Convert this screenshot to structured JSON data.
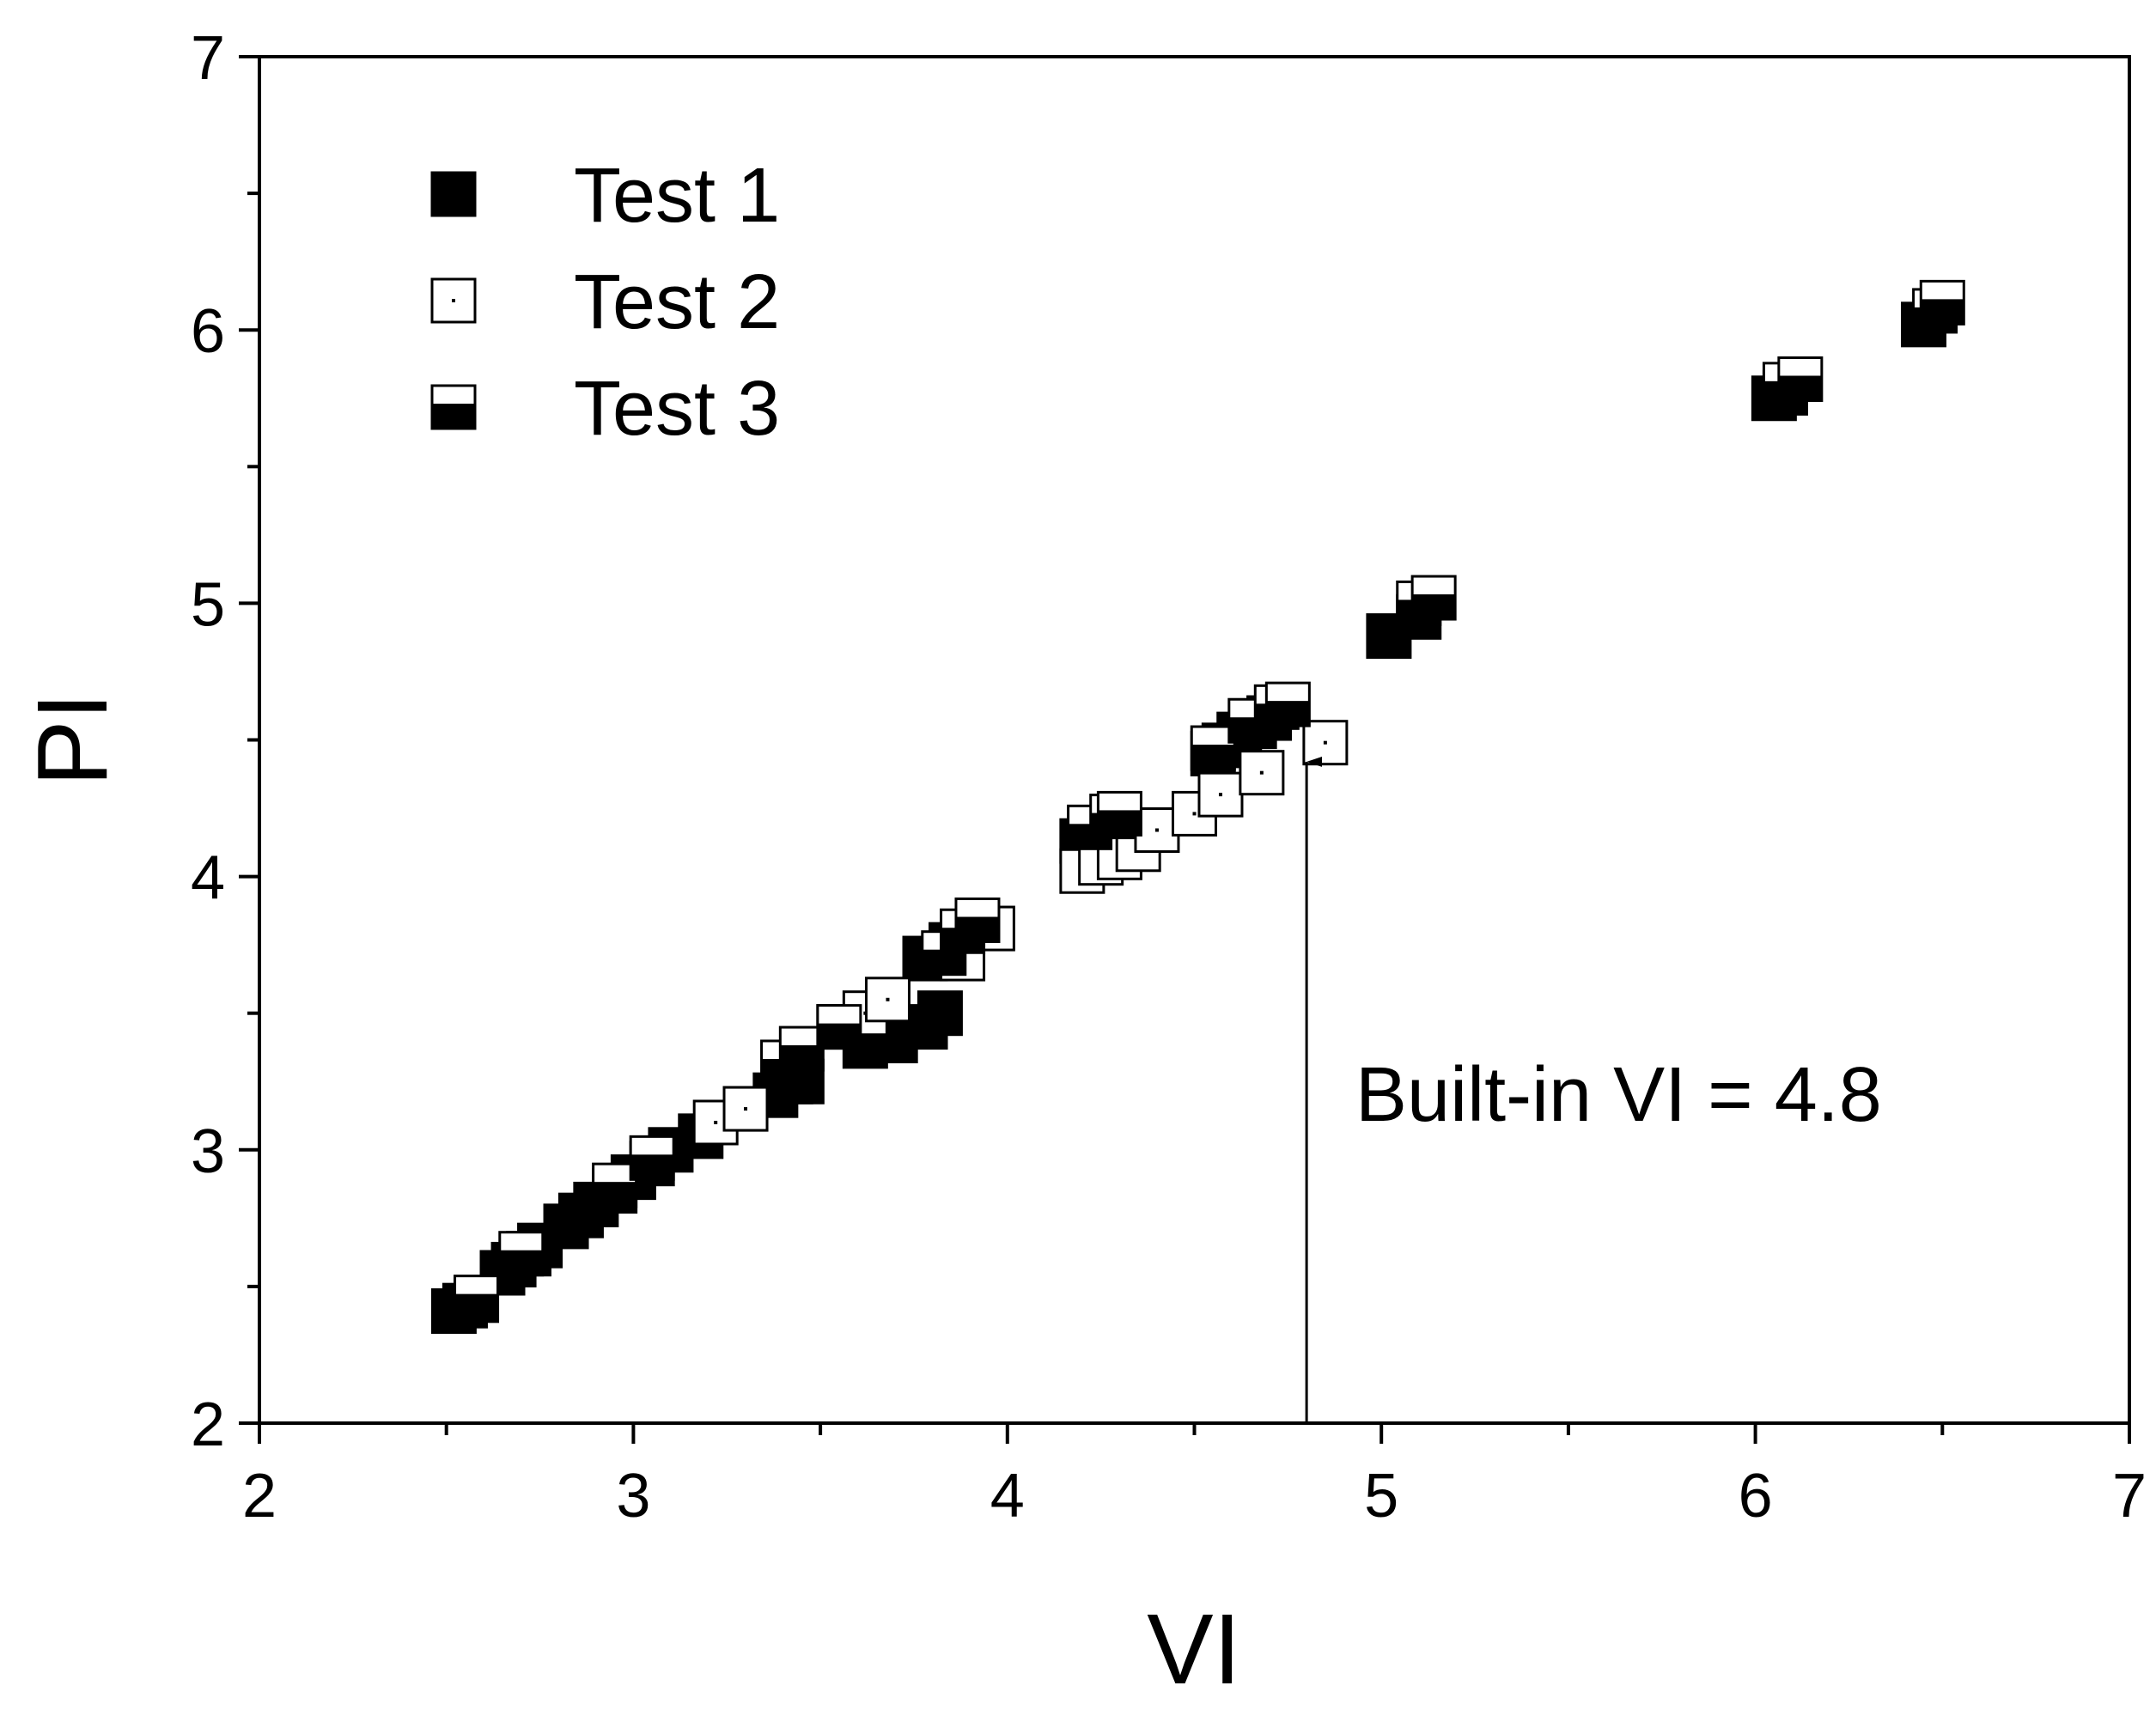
{
  "chart_data": {
    "type": "scatter",
    "xlabel": "VI",
    "ylabel": "PI",
    "xlim": [
      2,
      7
    ],
    "ylim": [
      2,
      7
    ],
    "xticks": [
      "2",
      "3",
      "4",
      "5",
      "6",
      "7"
    ],
    "yticks": [
      "2",
      "3",
      "4",
      "5",
      "6",
      "7"
    ],
    "grid": false,
    "legend_position": "top-left",
    "annotation": {
      "text": "Built-in VI = 4.8",
      "x": 4.8,
      "y_from": 2.0,
      "y_to": 4.42
    },
    "series": [
      {
        "name": "Test 1",
        "marker": "filled-square",
        "points": [
          [
            2.52,
            2.41
          ],
          [
            2.55,
            2.43
          ],
          [
            2.58,
            2.45
          ],
          [
            2.65,
            2.55
          ],
          [
            2.68,
            2.58
          ],
          [
            2.72,
            2.62
          ],
          [
            2.75,
            2.65
          ],
          [
            2.82,
            2.72
          ],
          [
            2.86,
            2.76
          ],
          [
            2.9,
            2.8
          ],
          [
            2.95,
            2.85
          ],
          [
            3.0,
            2.9
          ],
          [
            3.05,
            2.95
          ],
          [
            3.1,
            3.0
          ],
          [
            3.18,
            3.05
          ],
          [
            3.3,
            3.15
          ],
          [
            3.38,
            3.2
          ],
          [
            3.42,
            3.25
          ],
          [
            3.45,
            3.25
          ],
          [
            3.62,
            3.38
          ],
          [
            3.7,
            3.4
          ],
          [
            3.78,
            3.45
          ],
          [
            3.82,
            3.5
          ],
          [
            3.78,
            3.7
          ],
          [
            3.85,
            3.75
          ],
          [
            4.2,
            4.13
          ],
          [
            4.22,
            4.15
          ],
          [
            4.25,
            4.17
          ],
          [
            4.55,
            4.45
          ],
          [
            4.58,
            4.48
          ],
          [
            4.62,
            4.52
          ],
          [
            4.66,
            4.55
          ],
          [
            4.7,
            4.58
          ],
          [
            5.02,
            4.88
          ],
          [
            5.1,
            4.95
          ],
          [
            6.05,
            5.75
          ],
          [
            6.08,
            5.77
          ],
          [
            6.45,
            6.02
          ]
        ]
      },
      {
        "name": "Test 2",
        "marker": "open-square",
        "points": [
          [
            3.22,
            3.1
          ],
          [
            3.3,
            3.15
          ],
          [
            3.55,
            3.45
          ],
          [
            3.62,
            3.5
          ],
          [
            3.68,
            3.55
          ],
          [
            3.88,
            3.7
          ],
          [
            3.96,
            3.81
          ],
          [
            4.2,
            4.02
          ],
          [
            4.25,
            4.05
          ],
          [
            4.3,
            4.07
          ],
          [
            4.35,
            4.1
          ],
          [
            4.4,
            4.17
          ],
          [
            4.5,
            4.23
          ],
          [
            4.57,
            4.3
          ],
          [
            4.68,
            4.38
          ],
          [
            4.85,
            4.49
          ]
        ]
      },
      {
        "name": "Test 3",
        "marker": "half-filled-square",
        "points": [
          [
            2.58,
            2.46
          ],
          [
            2.7,
            2.62
          ],
          [
            2.95,
            2.87
          ],
          [
            3.05,
            2.97
          ],
          [
            3.4,
            3.32
          ],
          [
            3.45,
            3.37
          ],
          [
            3.55,
            3.45
          ],
          [
            3.83,
            3.72
          ],
          [
            3.88,
            3.8
          ],
          [
            3.92,
            3.84
          ],
          [
            4.22,
            4.18
          ],
          [
            4.28,
            4.22
          ],
          [
            4.3,
            4.23
          ],
          [
            4.55,
            4.47
          ],
          [
            4.65,
            4.57
          ],
          [
            4.72,
            4.62
          ],
          [
            4.75,
            4.63
          ],
          [
            5.1,
            5.0
          ],
          [
            5.14,
            5.02
          ],
          [
            6.08,
            5.8
          ],
          [
            6.12,
            5.82
          ],
          [
            6.48,
            6.07
          ],
          [
            6.5,
            6.1
          ]
        ]
      }
    ]
  }
}
